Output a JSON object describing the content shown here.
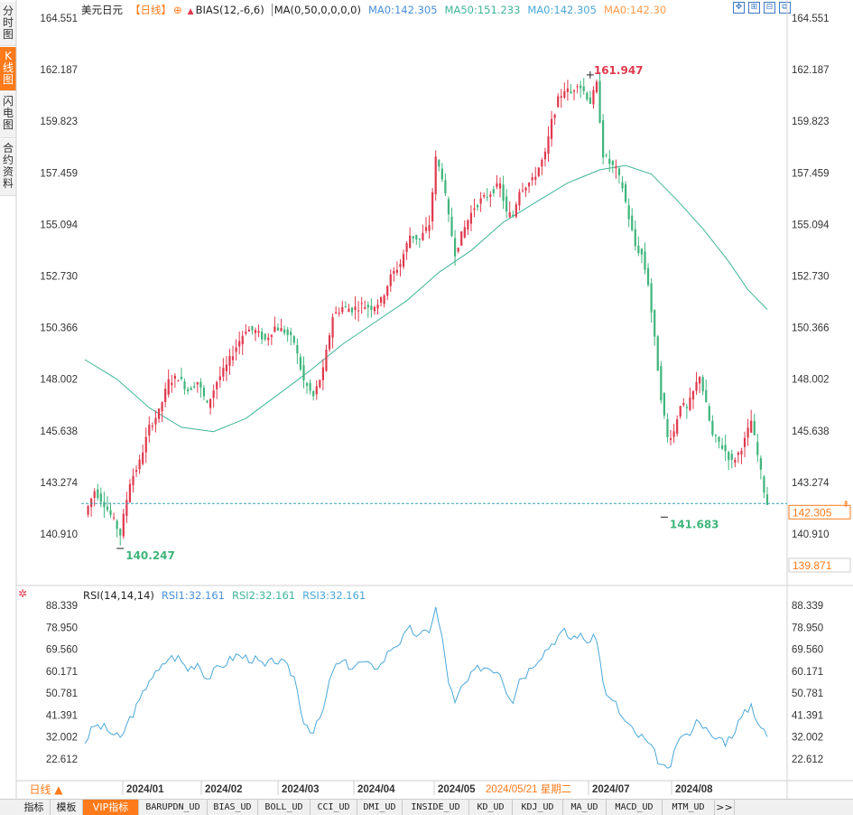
{
  "side_tabs": [
    {
      "label": "分时图",
      "active": false
    },
    {
      "label": "K线图",
      "active": true
    },
    {
      "label": "闪电图",
      "active": false
    },
    {
      "label": "合约资料",
      "active": false
    }
  ],
  "legend": {
    "symbol": "美元日元",
    "period": "【日线】",
    "bias": "BIAS(12,-6,6)",
    "ma_params": "MA(0,50,0,0,0,0)",
    "ma0": "MA0:142.305",
    "ma50": "MA50:151.233",
    "ma0b": "MA0:142.305",
    "ma0c": "MA0:142.30"
  },
  "colors": {
    "up": "#e0394e",
    "down": "#3fb57c",
    "ma50": "#3fb59a",
    "rsi": "#4ba8d8",
    "accent": "#ff7a1a",
    "blue_text": "#4a90d9",
    "teal_text": "#3fb59a"
  },
  "toolbar_icons": [
    "move-icon",
    "zoom-in-icon",
    "zoom-out-icon",
    "restore-icon"
  ],
  "price_axis": [
    "164.551",
    "162.187",
    "159.823",
    "157.459",
    "155.094",
    "152.730",
    "150.366",
    "148.002",
    "145.638",
    "143.274",
    "140.910"
  ],
  "price_tags": {
    "current": "142.305",
    "low_visible": "139.871"
  },
  "annotations": {
    "high": "161.947",
    "low_left": "140.247",
    "low_right": "141.683"
  },
  "rsi_legend": {
    "params": "RSI(14,14,14)",
    "rsi1": "RSI1:32.161",
    "rsi2": "RSI2:32.161",
    "rsi3": "RSI3:32.161"
  },
  "rsi_axis": [
    "88.339",
    "78.950",
    "69.560",
    "60.171",
    "50.781",
    "41.391",
    "32.002",
    "22.612"
  ],
  "x_axis": {
    "labels": [
      "2024/01",
      "2024/02",
      "2024/03",
      "2024/04",
      "2024/05",
      "2024/07",
      "2024/08"
    ],
    "cursor_date": "2024/05/21 星期二"
  },
  "period_button": "日线 ▲",
  "bottom_tabs": [
    "指标",
    "模板",
    "VIP指标",
    "BARUPDN_UD",
    "BIAS_UD",
    "BOLL_UD",
    "CCI_UD",
    "DMI_UD",
    "INSIDE_UD",
    "KD_UD",
    "KDJ_UD",
    "MA_UD",
    "MACD_UD",
    "MTM_UD",
    ">>"
  ],
  "chart_data": [
    {
      "type": "candlestick",
      "title": "美元日元【日线】",
      "yticks": [
        164.551,
        162.187,
        159.823,
        157.459,
        155.094,
        152.73,
        150.366,
        148.002,
        145.638,
        143.274,
        140.91
      ],
      "ylim": [
        139.5,
        165.0
      ],
      "x_labels": [
        "2024/01",
        "2024/02",
        "2024/03",
        "2024/04",
        "2024/05",
        "2024/07",
        "2024/08"
      ],
      "close_path": [
        [
          0,
          141.8
        ],
        [
          3,
          142.9
        ],
        [
          6,
          142.3
        ],
        [
          9,
          141.5
        ],
        [
          11,
          140.9
        ],
        [
          14,
          143.3
        ],
        [
          17,
          144.2
        ],
        [
          20,
          145.8
        ],
        [
          23,
          146.5
        ],
        [
          26,
          147.9
        ],
        [
          29,
          148.1
        ],
        [
          32,
          147.5
        ],
        [
          35,
          147.9
        ],
        [
          38,
          146.8
        ],
        [
          41,
          147.9
        ],
        [
          44,
          148.6
        ],
        [
          47,
          149.5
        ],
        [
          50,
          150.3
        ],
        [
          53,
          150.2
        ],
        [
          56,
          149.8
        ],
        [
          59,
          150.4
        ],
        [
          62,
          150.2
        ],
        [
          65,
          149.7
        ],
        [
          68,
          147.9
        ],
        [
          71,
          147.2
        ],
        [
          74,
          148.4
        ],
        [
          77,
          150.9
        ],
        [
          80,
          151.3
        ],
        [
          83,
          151.2
        ],
        [
          86,
          151.4
        ],
        [
          89,
          151.3
        ],
        [
          92,
          151.6
        ],
        [
          95,
          152.7
        ],
        [
          98,
          153.3
        ],
        [
          101,
          154.6
        ],
        [
          104,
          154.4
        ],
        [
          107,
          155.1
        ],
        [
          109,
          158.1
        ],
        [
          111,
          157.3
        ],
        [
          113,
          155.4
        ],
        [
          115,
          153.8
        ],
        [
          117,
          154.6
        ],
        [
          119,
          155.3
        ],
        [
          121,
          155.9
        ],
        [
          123,
          156.2
        ],
        [
          125,
          156.4
        ],
        [
          127,
          156.7
        ],
        [
          129,
          156.9
        ],
        [
          131,
          155.6
        ],
        [
          133,
          155.5
        ],
        [
          135,
          156.7
        ],
        [
          137,
          156.9
        ],
        [
          139,
          157.1
        ],
        [
          141,
          157.7
        ],
        [
          143,
          158.3
        ],
        [
          145,
          159.8
        ],
        [
          147,
          160.8
        ],
        [
          149,
          161.3
        ],
        [
          151,
          161.1
        ],
        [
          153,
          161.6
        ],
        [
          155,
          161.2
        ],
        [
          157,
          160.7
        ],
        [
          159,
          161.5
        ],
        [
          161,
          158.3
        ],
        [
          163,
          157.9
        ],
        [
          165,
          157.6
        ],
        [
          167,
          156.8
        ],
        [
          169,
          155.4
        ],
        [
          171,
          154.1
        ],
        [
          173,
          153.7
        ],
        [
          175,
          152.4
        ],
        [
          177,
          149.8
        ],
        [
          179,
          147.2
        ],
        [
          181,
          145.3
        ],
        [
          183,
          145.6
        ],
        [
          185,
          146.9
        ],
        [
          187,
          146.6
        ],
        [
          189,
          147.4
        ],
        [
          191,
          148.2
        ],
        [
          193,
          146.8
        ],
        [
          195,
          145.4
        ],
        [
          197,
          145.1
        ],
        [
          199,
          144.7
        ],
        [
          201,
          144.2
        ],
        [
          203,
          144.6
        ],
        [
          205,
          145.2
        ],
        [
          207,
          146.1
        ],
        [
          209,
          144.5
        ],
        [
          211,
          142.9
        ],
        [
          212,
          142.3
        ]
      ],
      "ma50_path": [
        [
          0,
          148.9
        ],
        [
          10,
          148.0
        ],
        [
          20,
          146.7
        ],
        [
          30,
          145.8
        ],
        [
          40,
          145.6
        ],
        [
          50,
          146.2
        ],
        [
          60,
          147.3
        ],
        [
          70,
          148.4
        ],
        [
          80,
          149.6
        ],
        [
          90,
          150.6
        ],
        [
          100,
          151.6
        ],
        [
          110,
          152.9
        ],
        [
          120,
          153.9
        ],
        [
          130,
          155.2
        ],
        [
          140,
          156.1
        ],
        [
          150,
          157.0
        ],
        [
          160,
          157.6
        ],
        [
          168,
          157.8
        ],
        [
          176,
          157.4
        ],
        [
          184,
          156.2
        ],
        [
          192,
          154.9
        ],
        [
          200,
          153.4
        ],
        [
          206,
          152.1
        ],
        [
          212,
          151.2
        ]
      ],
      "highlights": {
        "high": 161.947,
        "low_left": 140.247,
        "low_right": 141.683,
        "current": 142.305
      }
    },
    {
      "type": "line",
      "title": "RSI(14,14,14)",
      "yticks": [
        88.339,
        78.95,
        69.56,
        60.171,
        50.781,
        41.391,
        32.002,
        22.612
      ],
      "ylim": [
        17.0,
        92.0
      ],
      "series": [
        {
          "name": "RSI1",
          "values": [
            [
              0,
              30
            ],
            [
              3,
              37
            ],
            [
              6,
              36
            ],
            [
              9,
              33
            ],
            [
              11,
              31
            ],
            [
              14,
              40
            ],
            [
              17,
              47
            ],
            [
              20,
              57
            ],
            [
              23,
              60
            ],
            [
              26,
              66
            ],
            [
              29,
              66
            ],
            [
              32,
              61
            ],
            [
              35,
              64
            ],
            [
              38,
              57
            ],
            [
              41,
              61
            ],
            [
              44,
              64
            ],
            [
              47,
              67
            ],
            [
              50,
              66
            ],
            [
              53,
              65
            ],
            [
              56,
              62
            ],
            [
              59,
              65
            ],
            [
              62,
              63
            ],
            [
              65,
              58
            ],
            [
              68,
              39
            ],
            [
              71,
              34
            ],
            [
              74,
              43
            ],
            [
              77,
              61
            ],
            [
              80,
              64
            ],
            [
              83,
              62
            ],
            [
              86,
              64
            ],
            [
              89,
              62
            ],
            [
              92,
              63
            ],
            [
              95,
              70
            ],
            [
              98,
              73
            ],
            [
              101,
              78
            ],
            [
              104,
              75
            ],
            [
              107,
              78
            ],
            [
              109,
              87
            ],
            [
              111,
              74
            ],
            [
              113,
              56
            ],
            [
              115,
              46
            ],
            [
              117,
              53
            ],
            [
              119,
              56
            ],
            [
              121,
              60
            ],
            [
              123,
              62
            ],
            [
              125,
              62
            ],
            [
              127,
              61
            ],
            [
              129,
              60
            ],
            [
              131,
              52
            ],
            [
              133,
              48
            ],
            [
              135,
              57
            ],
            [
              137,
              59
            ],
            [
              139,
              63
            ],
            [
              141,
              66
            ],
            [
              143,
              69
            ],
            [
              145,
              72
            ],
            [
              147,
              75
            ],
            [
              149,
              77
            ],
            [
              151,
              74
            ],
            [
              153,
              76
            ],
            [
              155,
              74
            ],
            [
              157,
              73
            ],
            [
              159,
              75
            ],
            [
              161,
              55
            ],
            [
              163,
              48
            ],
            [
              165,
              46
            ],
            [
              167,
              40
            ],
            [
              169,
              37
            ],
            [
              171,
              33
            ],
            [
              173,
              32
            ],
            [
              175,
              29
            ],
            [
              177,
              25
            ],
            [
              179,
              20
            ],
            [
              181,
              17
            ],
            [
              183,
              24
            ],
            [
              185,
              33
            ],
            [
              187,
              32
            ],
            [
              189,
              37
            ],
            [
              191,
              40
            ],
            [
              193,
              35
            ],
            [
              195,
              31
            ],
            [
              197,
              32
            ],
            [
              199,
              30
            ],
            [
              201,
              33
            ],
            [
              203,
              38
            ],
            [
              205,
              42
            ],
            [
              207,
              46
            ],
            [
              209,
              39
            ],
            [
              211,
              34
            ],
            [
              212,
              32.161
            ]
          ]
        }
      ]
    }
  ]
}
